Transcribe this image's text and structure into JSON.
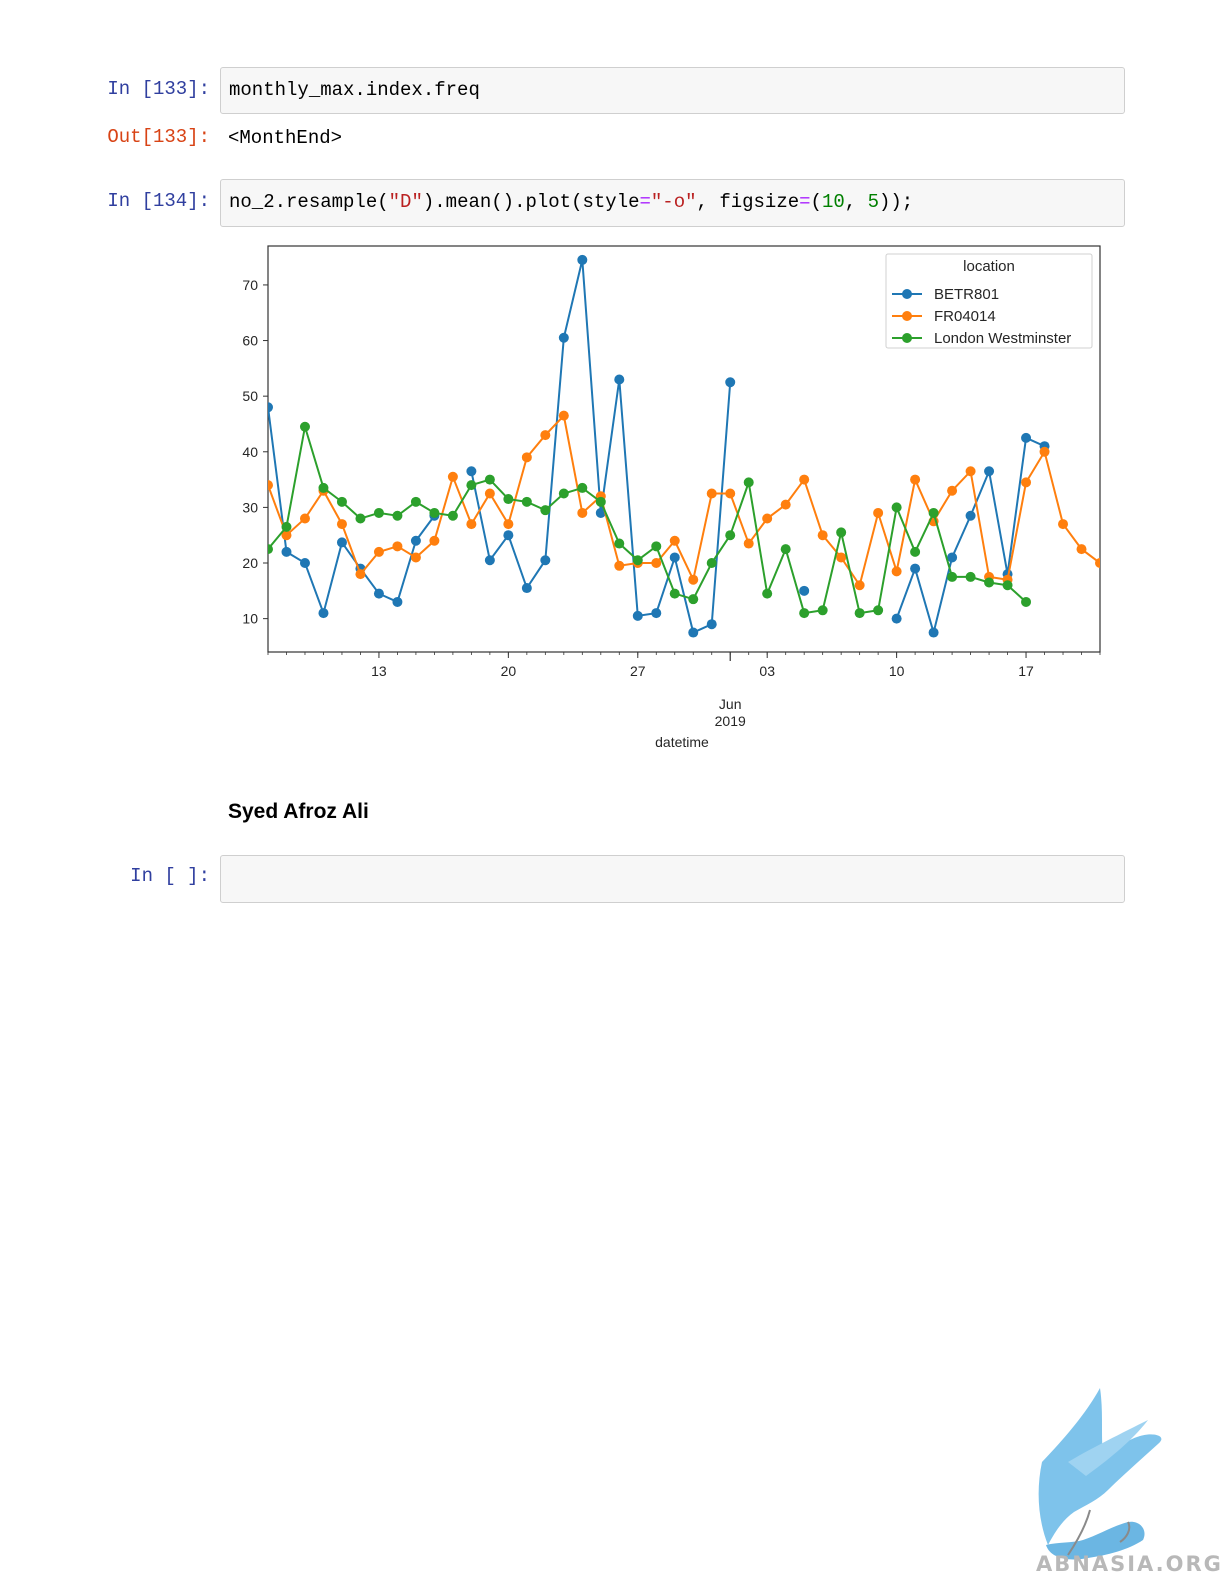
{
  "cells": [
    {
      "prompt": "In [133]:",
      "code": "monthly_max.index.freq",
      "output_prompt": "Out[133]:",
      "output": "<MonthEnd>"
    },
    {
      "prompt": "In [134]:",
      "code_parts": [
        "no_2.resample(",
        "\"D\"",
        ").mean().plot(style",
        "=",
        "\"-o\"",
        ", figsize",
        "=",
        "(",
        "10",
        ", ",
        "5",
        "));"
      ]
    },
    {
      "prompt": "In [ ]:",
      "code": ""
    }
  ],
  "author": "Syed Afroz Ali",
  "watermark_text": "ABNASIA.ORG",
  "chart_data": {
    "type": "line",
    "title": "",
    "xlabel": "datetime",
    "ylabel": "",
    "ylim": [
      4,
      77
    ],
    "yticks": [
      10,
      20,
      30,
      40,
      50,
      60,
      70
    ],
    "x_start": "2019-05-07",
    "x_end": "2019-06-21",
    "xtick_labels": [
      {
        "date": "2019-05-13",
        "label": "13"
      },
      {
        "date": "2019-05-20",
        "label": "20"
      },
      {
        "date": "2019-05-27",
        "label": "27"
      },
      {
        "date": "2019-06-03",
        "label": "03"
      },
      {
        "date": "2019-06-10",
        "label": "10"
      },
      {
        "date": "2019-06-17",
        "label": "17"
      }
    ],
    "major_label": {
      "date": "2019-06-01",
      "month": "Jun",
      "year": "2019"
    },
    "legend": {
      "title": "location",
      "position": "top-right"
    },
    "dates": [
      "2019-05-07",
      "2019-05-08",
      "2019-05-09",
      "2019-05-10",
      "2019-05-11",
      "2019-05-12",
      "2019-05-13",
      "2019-05-14",
      "2019-05-15",
      "2019-05-16",
      "2019-05-17",
      "2019-05-18",
      "2019-05-19",
      "2019-05-20",
      "2019-05-21",
      "2019-05-22",
      "2019-05-23",
      "2019-05-24",
      "2019-05-25",
      "2019-05-26",
      "2019-05-27",
      "2019-05-28",
      "2019-05-29",
      "2019-05-30",
      "2019-05-31",
      "2019-06-01",
      "2019-06-02",
      "2019-06-03",
      "2019-06-04",
      "2019-06-05",
      "2019-06-06",
      "2019-06-07",
      "2019-06-08",
      "2019-06-09",
      "2019-06-10",
      "2019-06-11",
      "2019-06-12",
      "2019-06-13",
      "2019-06-14",
      "2019-06-15",
      "2019-06-16",
      "2019-06-17",
      "2019-06-18",
      "2019-06-19",
      "2019-06-20",
      "2019-06-21"
    ],
    "series": [
      {
        "name": "BETR801",
        "color": "#1f77b4",
        "values": [
          48,
          22,
          20,
          11,
          23.7,
          19,
          14.5,
          13,
          24,
          28.5,
          null,
          36.5,
          20.5,
          25,
          15.5,
          20.5,
          60.5,
          74.5,
          29,
          53,
          10.5,
          11,
          21,
          7.5,
          9,
          52.5,
          null,
          null,
          null,
          15,
          null,
          null,
          null,
          null,
          10,
          19,
          7.5,
          21,
          28.5,
          36.5,
          18,
          42.5,
          41,
          null,
          null,
          null
        ]
      },
      {
        "name": "FR04014",
        "color": "#ff7f0e",
        "values": [
          34,
          25,
          28,
          33,
          27,
          18,
          22,
          23,
          21,
          24,
          35.5,
          27,
          32.5,
          27,
          39,
          43,
          46.5,
          29,
          32,
          19.5,
          20,
          20,
          24,
          17,
          32.5,
          32.5,
          23.5,
          28,
          30.5,
          35,
          25,
          21,
          16,
          29,
          18.5,
          35,
          27.5,
          33,
          36.5,
          17.5,
          17,
          34.5,
          40,
          27,
          22.5,
          20
        ]
      },
      {
        "name": "London Westminster",
        "color": "#2ca02c",
        "values": [
          22.5,
          26.5,
          44.5,
          33.5,
          31,
          28,
          29,
          28.5,
          31,
          29,
          28.5,
          34,
          35,
          31.5,
          31,
          29.5,
          32.5,
          33.5,
          31,
          23.5,
          20.5,
          23,
          14.5,
          13.5,
          20,
          25,
          34.5,
          14.5,
          22.5,
          11,
          11.5,
          25.5,
          11,
          11.5,
          30,
          22,
          29,
          17.5,
          17.5,
          16.5,
          16,
          13,
          null,
          null,
          null,
          null
        ]
      }
    ]
  }
}
